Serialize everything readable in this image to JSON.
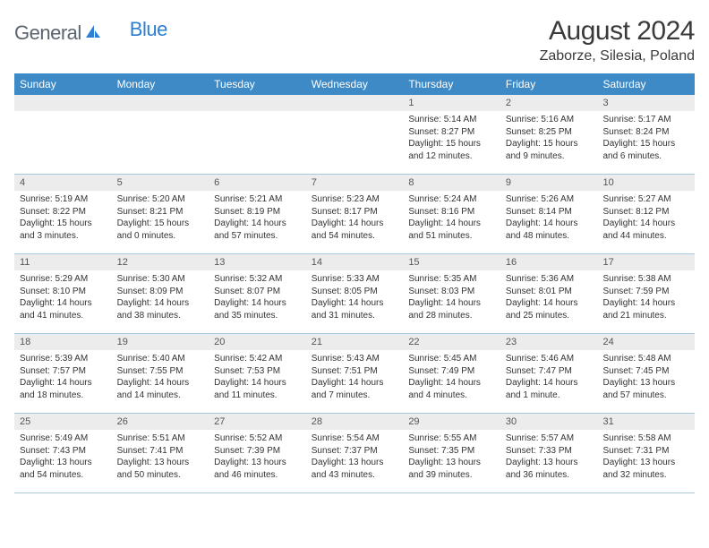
{
  "logo": {
    "text1": "General",
    "text2": "Blue"
  },
  "title": "August 2024",
  "location": "Zaborze, Silesia, Poland",
  "colors": {
    "header_bg": "#3d8ac7",
    "header_text": "#ffffff",
    "daynum_bg": "#ececec",
    "border": "#a8c8e0",
    "logo_gray": "#5a6570",
    "logo_blue": "#2d7fd4"
  },
  "day_names": [
    "Sunday",
    "Monday",
    "Tuesday",
    "Wednesday",
    "Thursday",
    "Friday",
    "Saturday"
  ],
  "weeks": [
    [
      null,
      null,
      null,
      null,
      {
        "n": "1",
        "sr": "Sunrise: 5:14 AM",
        "ss": "Sunset: 8:27 PM",
        "dl": "Daylight: 15 hours and 12 minutes."
      },
      {
        "n": "2",
        "sr": "Sunrise: 5:16 AM",
        "ss": "Sunset: 8:25 PM",
        "dl": "Daylight: 15 hours and 9 minutes."
      },
      {
        "n": "3",
        "sr": "Sunrise: 5:17 AM",
        "ss": "Sunset: 8:24 PM",
        "dl": "Daylight: 15 hours and 6 minutes."
      }
    ],
    [
      {
        "n": "4",
        "sr": "Sunrise: 5:19 AM",
        "ss": "Sunset: 8:22 PM",
        "dl": "Daylight: 15 hours and 3 minutes."
      },
      {
        "n": "5",
        "sr": "Sunrise: 5:20 AM",
        "ss": "Sunset: 8:21 PM",
        "dl": "Daylight: 15 hours and 0 minutes."
      },
      {
        "n": "6",
        "sr": "Sunrise: 5:21 AM",
        "ss": "Sunset: 8:19 PM",
        "dl": "Daylight: 14 hours and 57 minutes."
      },
      {
        "n": "7",
        "sr": "Sunrise: 5:23 AM",
        "ss": "Sunset: 8:17 PM",
        "dl": "Daylight: 14 hours and 54 minutes."
      },
      {
        "n": "8",
        "sr": "Sunrise: 5:24 AM",
        "ss": "Sunset: 8:16 PM",
        "dl": "Daylight: 14 hours and 51 minutes."
      },
      {
        "n": "9",
        "sr": "Sunrise: 5:26 AM",
        "ss": "Sunset: 8:14 PM",
        "dl": "Daylight: 14 hours and 48 minutes."
      },
      {
        "n": "10",
        "sr": "Sunrise: 5:27 AM",
        "ss": "Sunset: 8:12 PM",
        "dl": "Daylight: 14 hours and 44 minutes."
      }
    ],
    [
      {
        "n": "11",
        "sr": "Sunrise: 5:29 AM",
        "ss": "Sunset: 8:10 PM",
        "dl": "Daylight: 14 hours and 41 minutes."
      },
      {
        "n": "12",
        "sr": "Sunrise: 5:30 AM",
        "ss": "Sunset: 8:09 PM",
        "dl": "Daylight: 14 hours and 38 minutes."
      },
      {
        "n": "13",
        "sr": "Sunrise: 5:32 AM",
        "ss": "Sunset: 8:07 PM",
        "dl": "Daylight: 14 hours and 35 minutes."
      },
      {
        "n": "14",
        "sr": "Sunrise: 5:33 AM",
        "ss": "Sunset: 8:05 PM",
        "dl": "Daylight: 14 hours and 31 minutes."
      },
      {
        "n": "15",
        "sr": "Sunrise: 5:35 AM",
        "ss": "Sunset: 8:03 PM",
        "dl": "Daylight: 14 hours and 28 minutes."
      },
      {
        "n": "16",
        "sr": "Sunrise: 5:36 AM",
        "ss": "Sunset: 8:01 PM",
        "dl": "Daylight: 14 hours and 25 minutes."
      },
      {
        "n": "17",
        "sr": "Sunrise: 5:38 AM",
        "ss": "Sunset: 7:59 PM",
        "dl": "Daylight: 14 hours and 21 minutes."
      }
    ],
    [
      {
        "n": "18",
        "sr": "Sunrise: 5:39 AM",
        "ss": "Sunset: 7:57 PM",
        "dl": "Daylight: 14 hours and 18 minutes."
      },
      {
        "n": "19",
        "sr": "Sunrise: 5:40 AM",
        "ss": "Sunset: 7:55 PM",
        "dl": "Daylight: 14 hours and 14 minutes."
      },
      {
        "n": "20",
        "sr": "Sunrise: 5:42 AM",
        "ss": "Sunset: 7:53 PM",
        "dl": "Daylight: 14 hours and 11 minutes."
      },
      {
        "n": "21",
        "sr": "Sunrise: 5:43 AM",
        "ss": "Sunset: 7:51 PM",
        "dl": "Daylight: 14 hours and 7 minutes."
      },
      {
        "n": "22",
        "sr": "Sunrise: 5:45 AM",
        "ss": "Sunset: 7:49 PM",
        "dl": "Daylight: 14 hours and 4 minutes."
      },
      {
        "n": "23",
        "sr": "Sunrise: 5:46 AM",
        "ss": "Sunset: 7:47 PM",
        "dl": "Daylight: 14 hours and 1 minute."
      },
      {
        "n": "24",
        "sr": "Sunrise: 5:48 AM",
        "ss": "Sunset: 7:45 PM",
        "dl": "Daylight: 13 hours and 57 minutes."
      }
    ],
    [
      {
        "n": "25",
        "sr": "Sunrise: 5:49 AM",
        "ss": "Sunset: 7:43 PM",
        "dl": "Daylight: 13 hours and 54 minutes."
      },
      {
        "n": "26",
        "sr": "Sunrise: 5:51 AM",
        "ss": "Sunset: 7:41 PM",
        "dl": "Daylight: 13 hours and 50 minutes."
      },
      {
        "n": "27",
        "sr": "Sunrise: 5:52 AM",
        "ss": "Sunset: 7:39 PM",
        "dl": "Daylight: 13 hours and 46 minutes."
      },
      {
        "n": "28",
        "sr": "Sunrise: 5:54 AM",
        "ss": "Sunset: 7:37 PM",
        "dl": "Daylight: 13 hours and 43 minutes."
      },
      {
        "n": "29",
        "sr": "Sunrise: 5:55 AM",
        "ss": "Sunset: 7:35 PM",
        "dl": "Daylight: 13 hours and 39 minutes."
      },
      {
        "n": "30",
        "sr": "Sunrise: 5:57 AM",
        "ss": "Sunset: 7:33 PM",
        "dl": "Daylight: 13 hours and 36 minutes."
      },
      {
        "n": "31",
        "sr": "Sunrise: 5:58 AM",
        "ss": "Sunset: 7:31 PM",
        "dl": "Daylight: 13 hours and 32 minutes."
      }
    ]
  ]
}
